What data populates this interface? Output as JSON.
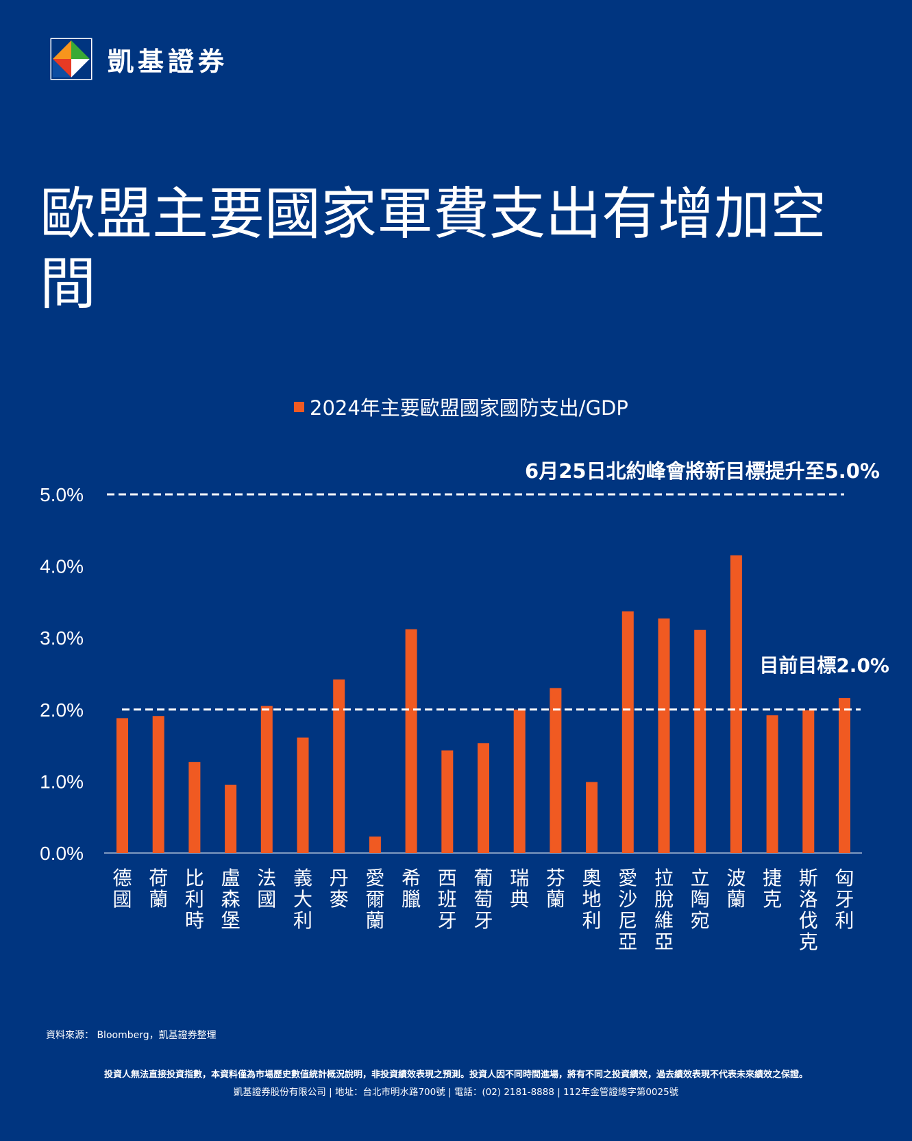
{
  "brand": {
    "name": "凱基證券",
    "logo_icon": "kgi-diamond-logo-icon"
  },
  "title": "歐盟主要國家軍費支出有增加空間",
  "colors": {
    "background": "#003580",
    "bar": "#f05a22",
    "text": "#ffffff"
  },
  "legend": {
    "label": "2024年主要歐盟國家國防支出/GDP"
  },
  "chart_data": {
    "type": "bar",
    "title": "",
    "xlabel": "",
    "ylabel": "",
    "ylim": [
      0,
      5
    ],
    "yticks": [
      "0.0%",
      "1.0%",
      "2.0%",
      "3.0%",
      "4.0%",
      "5.0%"
    ],
    "grid": false,
    "legend_position": "top-center",
    "categories": [
      "德國",
      "荷蘭",
      "比利時",
      "盧森堡",
      "法國",
      "義大利",
      "丹麥",
      "愛爾蘭",
      "希臘",
      "西班牙",
      "葡萄牙",
      "瑞典",
      "芬蘭",
      "奧地利",
      "愛沙尼亞",
      "拉脫維亞",
      "立陶宛",
      "波蘭",
      "捷克",
      "斯洛伐克",
      "匈牙利"
    ],
    "series": [
      {
        "name": "2024年主要歐盟國家國防支出/GDP",
        "values": [
          1.88,
          1.91,
          1.27,
          0.95,
          2.05,
          1.61,
          2.42,
          0.23,
          3.12,
          1.43,
          1.53,
          2.0,
          2.3,
          0.99,
          3.37,
          3.27,
          3.11,
          4.15,
          1.92,
          1.99,
          2.16
        ]
      }
    ],
    "reference_lines": [
      {
        "value": 5.0,
        "label": "6月25日北約峰會將新目標提升至5.0%"
      },
      {
        "value": 2.0,
        "label": "目前目標2.0%"
      }
    ]
  },
  "footer": {
    "source": "資料來源： Bloomberg，凱基證券整理",
    "disclaimer": "投資人無法直接投資指數，本資料僅為市場歷史數值統計概況說明，非投資績效表現之預測。投資人因不同時間進場，將有不同之投資績效，過去績效表現不代表未來績效之保證。",
    "company_info": "凱基證券股份有限公司 | 地址：台北市明水路700號 | 電話：(02) 2181-8888 | 112年金管證總字第0025號"
  }
}
